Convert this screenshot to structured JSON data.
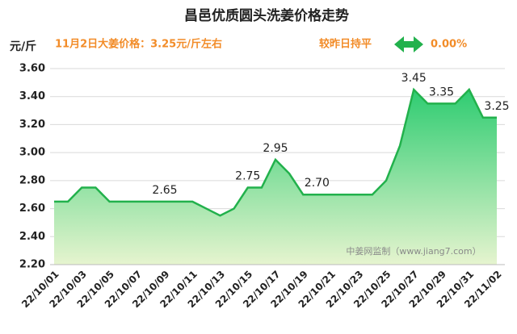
{
  "chart_data": {
    "type": "area",
    "title": "昌邑优质圆头洗姜价格走势",
    "y_unit": "元/斤",
    "note": "11月2日大姜价格：3.25元/斤左右",
    "change_label": "较昨日持平",
    "change_value": "0.00%",
    "watermark": "中姜网监制（www.jiang7.com）",
    "categories": [
      "22/10/01",
      null,
      "22/10/03",
      null,
      "22/10/05",
      null,
      "22/10/07",
      null,
      "22/10/09",
      null,
      "22/10/11",
      null,
      "22/10/13",
      null,
      "22/10/15",
      null,
      "22/10/17",
      null,
      "22/10/19",
      null,
      "22/10/21",
      null,
      "22/10/23",
      null,
      "22/10/25",
      null,
      "22/10/27",
      null,
      "22/10/29",
      null,
      "22/10/31",
      null,
      "22/11/02"
    ],
    "values": [
      2.65,
      2.65,
      2.75,
      2.75,
      2.65,
      2.65,
      2.65,
      2.65,
      2.65,
      2.65,
      2.65,
      2.6,
      2.55,
      2.6,
      2.75,
      2.75,
      2.95,
      2.85,
      2.7,
      2.7,
      2.7,
      2.7,
      2.7,
      2.7,
      2.8,
      3.05,
      3.45,
      3.35,
      3.35,
      3.35,
      3.45,
      3.25,
      3.25
    ],
    "value_labels": [
      null,
      null,
      null,
      null,
      null,
      null,
      null,
      null,
      "2.65",
      null,
      null,
      null,
      null,
      null,
      "2.75",
      null,
      "2.95",
      null,
      null,
      "2.70",
      null,
      null,
      null,
      null,
      null,
      null,
      "3.45",
      null,
      "3.35",
      null,
      null,
      null,
      "3.25"
    ],
    "color": "#22b14c",
    "ylim": [
      2.2,
      3.6
    ],
    "yticks": [
      {
        "value": 2.2,
        "label": "2.20"
      },
      {
        "value": 2.4,
        "label": "2.40"
      },
      {
        "value": 2.6,
        "label": "2.60"
      },
      {
        "value": 2.8,
        "label": "2.80"
      },
      {
        "value": 3.0,
        "label": "3.00"
      },
      {
        "value": 3.2,
        "label": "3.20"
      },
      {
        "value": 3.4,
        "label": "3.40"
      },
      {
        "value": 3.6,
        "label": "3.60"
      }
    ],
    "grid": true
  }
}
